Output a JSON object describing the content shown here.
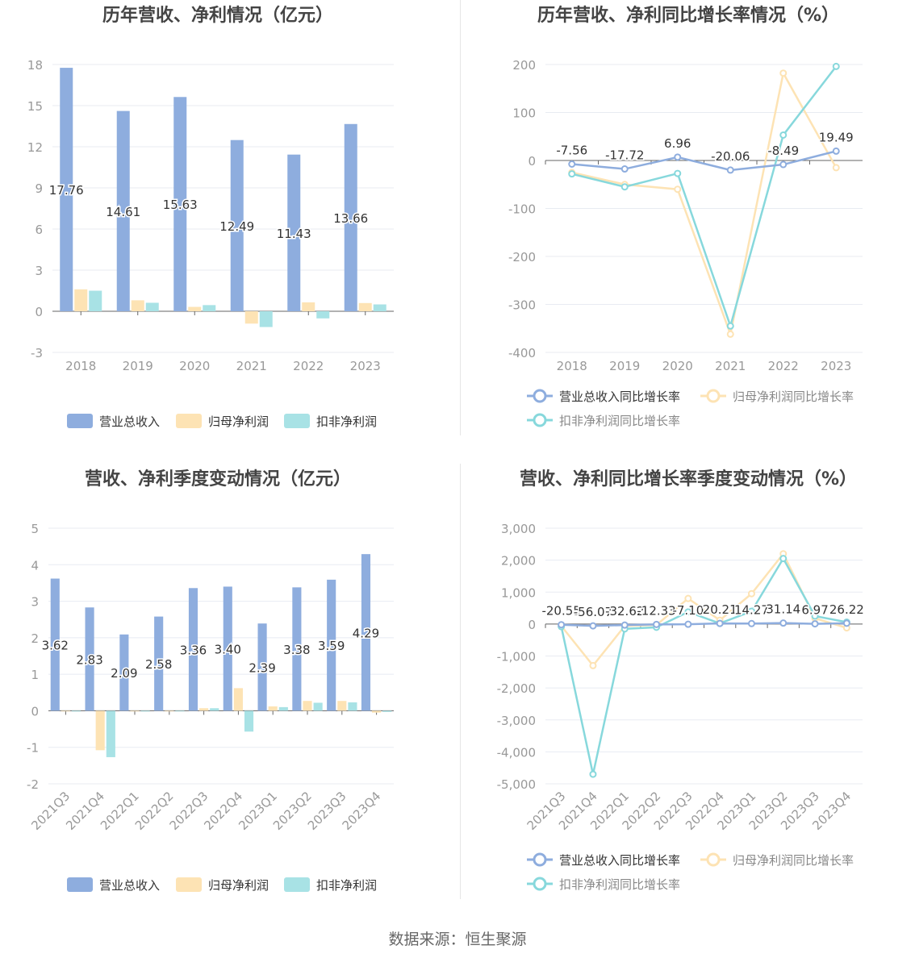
{
  "source": "数据来源：恒生聚源",
  "colors": {
    "revenue": "#8eadde",
    "netprofit": "#fde3b4",
    "deducted": "#87d8dc",
    "axis_text": "#999999",
    "grid": "#e8ebf2",
    "title": "#444444"
  },
  "chart_data": [
    {
      "id": "annual-bar",
      "type": "bar",
      "title": "历年营收、净利情况（亿元）",
      "categories": [
        "2018",
        "2019",
        "2020",
        "2021",
        "2022",
        "2023"
      ],
      "ylim": [
        -3,
        18
      ],
      "yticks": [
        "-3",
        "0",
        "3",
        "6",
        "9",
        "12",
        "15",
        "18"
      ],
      "series": [
        {
          "name": "营业总收入",
          "color": "#8eadde",
          "values": [
            17.76,
            14.61,
            15.63,
            12.49,
            11.43,
            13.66
          ],
          "labels": [
            "17.76",
            "14.61",
            "15.63",
            "12.49",
            "11.43",
            "13.66"
          ]
        },
        {
          "name": "归母净利润",
          "color": "#fde3b4",
          "values": [
            1.6,
            0.8,
            0.32,
            -0.9,
            0.65,
            0.6
          ]
        },
        {
          "name": "扣非净利润",
          "color": "#a8e2e5",
          "values": [
            1.5,
            0.62,
            0.45,
            -1.15,
            -0.52,
            0.5
          ]
        }
      ],
      "legend": "bottom"
    },
    {
      "id": "annual-line",
      "type": "line",
      "title": "历年营收、净利同比增长率情况（%）",
      "categories": [
        "2018",
        "2019",
        "2020",
        "2021",
        "2022",
        "2023"
      ],
      "ylim": [
        -400,
        200
      ],
      "yticks": [
        "-400",
        "-300",
        "-200",
        "-100",
        "0",
        "100",
        "200"
      ],
      "series": [
        {
          "name": "营业总收入同比增长率",
          "color": "#8eadde",
          "values": [
            -7.56,
            -17.72,
            6.96,
            -20.06,
            -8.49,
            19.49
          ],
          "labels": [
            "-7.56",
            "-17.72",
            "6.96",
            "-20.06",
            "-8.49",
            "19.49"
          ]
        },
        {
          "name": "归母净利润同比增长率",
          "color": "#fde3b4",
          "values": [
            -25,
            -50,
            -60,
            -362,
            182,
            -15
          ]
        },
        {
          "name": "扣非净利润同比增长率",
          "color": "#87d8dc",
          "values": [
            -28,
            -55,
            -27,
            -345,
            53,
            196
          ]
        }
      ],
      "legend": "bottom"
    },
    {
      "id": "quarter-bar",
      "type": "bar",
      "title": "营收、净利季度变动情况（亿元）",
      "categories": [
        "2021Q3",
        "2021Q4",
        "2022Q1",
        "2022Q2",
        "2022Q3",
        "2022Q4",
        "2023Q1",
        "2023Q2",
        "2023Q3",
        "2023Q4"
      ],
      "ylim": [
        -2,
        5
      ],
      "yticks": [
        "-2",
        "-1",
        "0",
        "1",
        "2",
        "3",
        "4",
        "5"
      ],
      "series": [
        {
          "name": "营业总收入",
          "color": "#8eadde",
          "values": [
            3.62,
            2.83,
            2.09,
            2.58,
            3.36,
            3.4,
            2.39,
            3.38,
            3.59,
            4.29
          ],
          "labels": [
            "3.62",
            "2.83",
            "2.09",
            "2.58",
            "3.36",
            "3.40",
            "2.39",
            "3.38",
            "3.59",
            "4.29"
          ]
        },
        {
          "name": "归母净利润",
          "color": "#fde3b4",
          "values": [
            0.0,
            -1.08,
            0.0,
            0.0,
            0.07,
            0.62,
            0.12,
            0.27,
            0.27,
            -0.05
          ]
        },
        {
          "name": "扣非净利润",
          "color": "#a8e2e5",
          "values": [
            -0.02,
            -1.27,
            -0.02,
            0.0,
            0.07,
            -0.57,
            0.1,
            0.22,
            0.23,
            -0.03
          ]
        }
      ],
      "legend": "bottom"
    },
    {
      "id": "quarter-line",
      "type": "line",
      "title": "营收、净利同比增长率季度变动情况（%）",
      "categories": [
        "2021Q3",
        "2021Q4",
        "2022Q1",
        "2022Q2",
        "2022Q3",
        "2022Q4",
        "2023Q1",
        "2023Q2",
        "2023Q3",
        "2023Q4"
      ],
      "ylim": [
        -5000,
        3000
      ],
      "yticks": [
        "-5,000",
        "-4,000",
        "-3,000",
        "-2,000",
        "-1,000",
        "0",
        "1,000",
        "2,000",
        "3,000"
      ],
      "series": [
        {
          "name": "营业总收入同比增长率",
          "color": "#8eadde",
          "values": [
            -20.55,
            -56.07,
            -32.62,
            -12.33,
            -7.1,
            20.21,
            14.27,
            31.14,
            6.97,
            26.22
          ],
          "labels": [
            "-20.55",
            "-56.07",
            "-32.62",
            "-12.33",
            "-7.10",
            "20.21",
            "14.27",
            "31.14",
            "6.97",
            "26.22"
          ]
        },
        {
          "name": "归母净利润同比增长率",
          "color": "#fde3b4",
          "values": [
            -60,
            -1300,
            -60,
            -30,
            800,
            120,
            950,
            2200,
            180,
            -120
          ]
        },
        {
          "name": "扣非净利润同比增长率",
          "color": "#87d8dc",
          "values": [
            -80,
            -4700,
            -150,
            -100,
            380,
            20,
            400,
            2050,
            250,
            60
          ]
        }
      ],
      "legend": "bottom"
    }
  ]
}
